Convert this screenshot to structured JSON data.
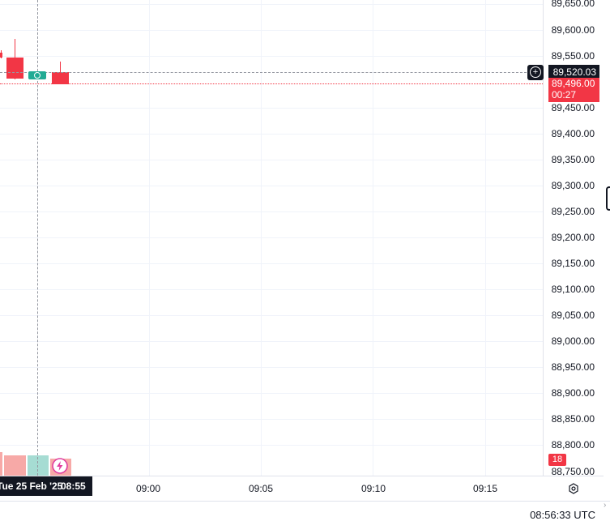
{
  "price_axis": {
    "labels": [
      "89,650.00",
      "89,600.00",
      "89,550.00",
      "89,450.00",
      "89,400.00",
      "89,350.00",
      "89,300.00",
      "89,250.00",
      "89,200.00",
      "89,150.00",
      "89,100.00",
      "89,050.00",
      "89,000.00",
      "88,950.00",
      "88,900.00",
      "88,850.00",
      "88,800.00",
      "88,750.00"
    ]
  },
  "time_axis": {
    "labels": [
      "09:00",
      "09:05",
      "09:10",
      "09:15"
    ]
  },
  "crosshair": {
    "price": "89,520.03",
    "date": "Tue 25 Feb '25",
    "time": "08:55"
  },
  "last_price": {
    "price": "89,496.00",
    "countdown": "00:27"
  },
  "volume_badge": "18",
  "footer": {
    "clock": "08:56:33 UTC"
  },
  "colors": {
    "down": "#f23645",
    "up": "#22ab94",
    "badge_bg": "#131722"
  },
  "icons": {
    "add": "plus-circle-icon",
    "settings": "gear-icon",
    "indicator": "lightning-icon"
  }
}
